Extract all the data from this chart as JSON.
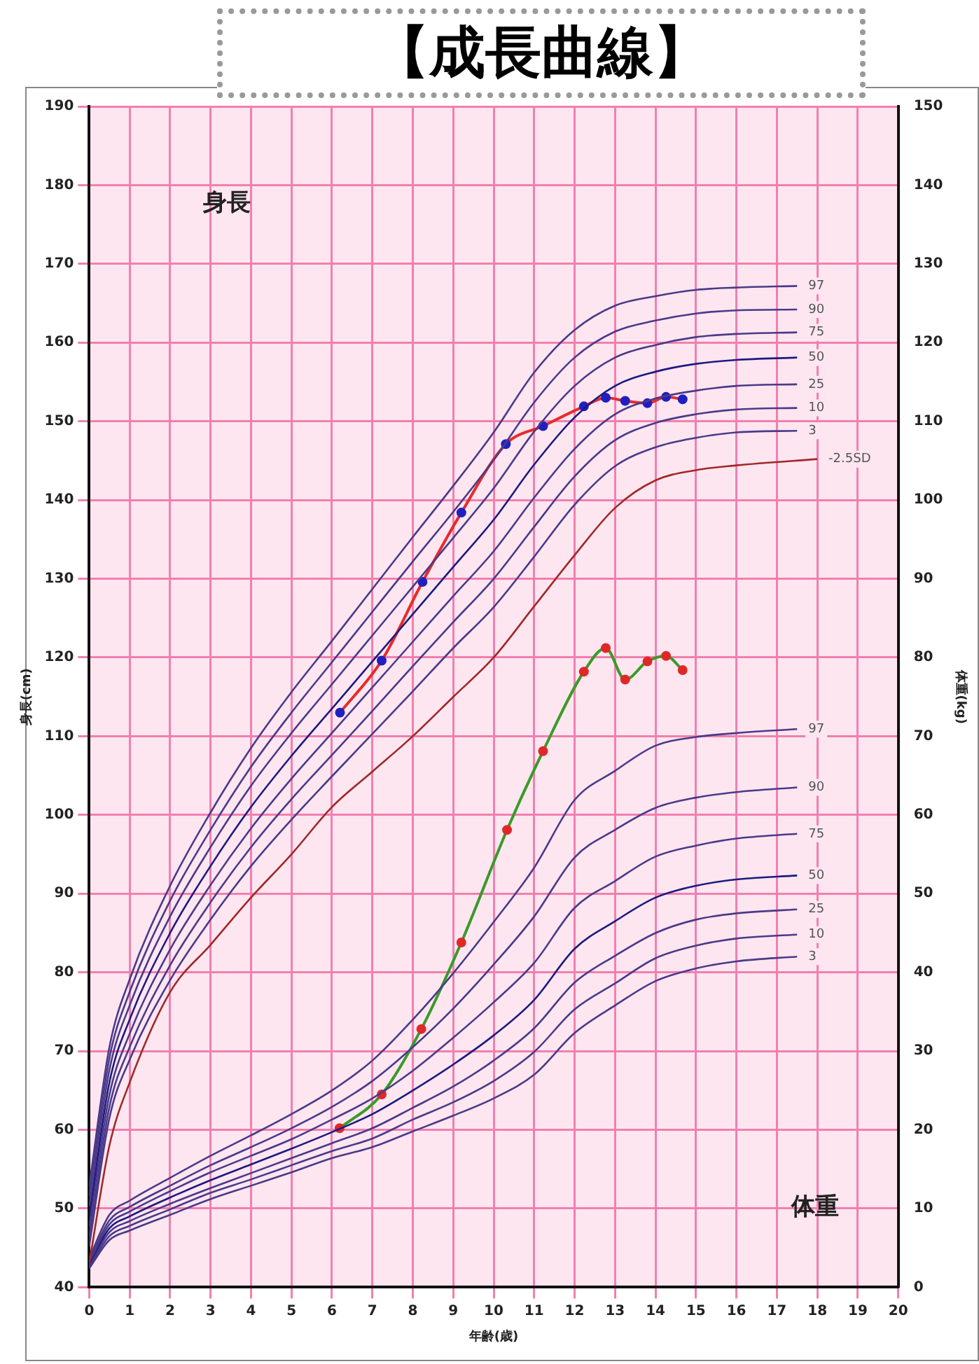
{
  "chart_data": {
    "type": "line",
    "title": "【成長曲線】",
    "xlabel": "年齢(歳)",
    "ylabel": "身長(cm)",
    "y2label": "体重(kg)",
    "annotations": [
      "身長",
      "体重"
    ],
    "xlim": [
      0,
      20
    ],
    "xticks": [
      0,
      1,
      2,
      3,
      4,
      5,
      6,
      7,
      8,
      9,
      10,
      11,
      12,
      13,
      14,
      15,
      16,
      17,
      18,
      19,
      20
    ],
    "ylim": [
      40,
      190
    ],
    "yticks": [
      40,
      50,
      60,
      70,
      80,
      90,
      100,
      110,
      120,
      130,
      140,
      150,
      160,
      170,
      180,
      190
    ],
    "y2lim": [
      0,
      150
    ],
    "y2ticks": [
      0,
      10,
      20,
      30,
      40,
      50,
      60,
      70,
      80,
      90,
      100,
      110,
      120,
      130,
      140,
      150
    ],
    "grid": true,
    "legend": false,
    "marker": "none",
    "line_style": "solid",
    "series": [
      {
        "name": "97",
        "color": "#4a3a8a",
        "x": [
          0,
          0.5,
          1,
          2,
          3,
          4,
          5,
          6,
          7,
          8,
          9,
          10,
          11,
          12,
          13,
          14,
          15,
          16,
          17.5
        ],
        "values": [
          52.8,
          70.5,
          79.1,
          91.0,
          100.3,
          108.5,
          115.6,
          122.1,
          128.7,
          135.3,
          141.8,
          148.6,
          156.2,
          161.6,
          164.7,
          165.9,
          166.7,
          167.0,
          167.2
        ]
      },
      {
        "name": "90",
        "color": "#4a3a8a",
        "x": [
          0,
          0.5,
          1,
          2,
          3,
          4,
          5,
          6,
          7,
          8,
          9,
          10,
          11,
          12,
          13,
          14,
          15,
          16,
          17.5
        ],
        "values": [
          51.6,
          69.1,
          77.5,
          89.1,
          98.1,
          106.1,
          113.0,
          119.4,
          125.8,
          132.2,
          138.5,
          145.1,
          152.4,
          158.1,
          161.4,
          162.8,
          163.7,
          164.1,
          164.2
        ]
      },
      {
        "name": "75",
        "color": "#4a3a8a",
        "x": [
          0,
          0.5,
          1,
          2,
          3,
          4,
          5,
          6,
          7,
          8,
          9,
          10,
          11,
          12,
          13,
          14,
          15,
          16,
          17.5
        ],
        "values": [
          50.3,
          67.6,
          75.8,
          87.1,
          95.9,
          103.7,
          110.4,
          116.6,
          122.8,
          129.0,
          135.2,
          141.5,
          148.7,
          154.5,
          158.1,
          159.7,
          160.7,
          161.1,
          161.3
        ]
      },
      {
        "name": "50",
        "color": "#1c1a80",
        "x": [
          0,
          0.5,
          1,
          2,
          3,
          4,
          5,
          6,
          7,
          8,
          9,
          10,
          11,
          12,
          13,
          14,
          15,
          16,
          17.5
        ],
        "values": [
          49,
          66,
          74,
          85,
          93.5,
          101,
          107.5,
          113.5,
          119.5,
          125.5,
          131.5,
          137.5,
          144.5,
          150.5,
          154.5,
          156.3,
          157.3,
          157.8,
          158.1
        ]
      },
      {
        "name": "25",
        "color": "#4a3a8a",
        "x": [
          0,
          0.5,
          1,
          2,
          3,
          4,
          5,
          6,
          7,
          8,
          9,
          10,
          11,
          12,
          13,
          14,
          15,
          16,
          17.5
        ],
        "values": [
          47.7,
          64.4,
          72.2,
          82.9,
          91.1,
          98.3,
          104.6,
          110.4,
          116.2,
          122.0,
          127.8,
          133.5,
          140.3,
          146.5,
          150.9,
          152.9,
          153.9,
          154.5,
          154.7
        ]
      },
      {
        "name": "10",
        "color": "#4a3a8a",
        "x": [
          0,
          0.5,
          1,
          2,
          3,
          4,
          5,
          6,
          7,
          8,
          9,
          10,
          11,
          12,
          13,
          14,
          15,
          16,
          17.5
        ],
        "values": [
          46.4,
          62.9,
          70.5,
          80.9,
          88.9,
          95.9,
          102.0,
          107.6,
          113.2,
          118.9,
          124.5,
          130.0,
          136.6,
          143.0,
          147.6,
          149.8,
          150.9,
          151.5,
          151.7
        ]
      },
      {
        "name": "3",
        "color": "#4a3a8a",
        "x": [
          0,
          0.5,
          1,
          2,
          3,
          4,
          5,
          6,
          7,
          8,
          9,
          10,
          11,
          12,
          13,
          14,
          15,
          16,
          17.5
        ],
        "values": [
          45.2,
          61.5,
          68.9,
          79.0,
          86.7,
          93.5,
          99.4,
          104.9,
          110.3,
          115.7,
          121.2,
          126.4,
          132.8,
          139.4,
          144.3,
          146.7,
          147.9,
          148.6,
          148.8
        ]
      },
      {
        "name": "-2.5SD",
        "color": "#a02828",
        "x": [
          0,
          0.5,
          1,
          2,
          3,
          4,
          5,
          6,
          7,
          8,
          9,
          10,
          11,
          12,
          13,
          14,
          15,
          16,
          18
        ],
        "values": [
          43,
          58,
          66,
          77.5,
          83.5,
          89.5,
          95,
          101,
          105.5,
          110,
          115,
          120,
          126.5,
          133,
          139,
          142.5,
          143.8,
          144.4,
          145.2
        ]
      },
      {
        "name": "97",
        "color": "#4a3a8a",
        "axis": "y2",
        "x": [
          0,
          0.5,
          1,
          2,
          3,
          4,
          5,
          6,
          7,
          8,
          9,
          10,
          11,
          12,
          13,
          14,
          15,
          16,
          17.5
        ],
        "values": [
          3.7,
          9.2,
          11.0,
          13.9,
          16.7,
          19.3,
          22.0,
          25.0,
          28.8,
          34.0,
          39.9,
          46.4,
          53.3,
          61.9,
          65.6,
          68.8,
          69.9,
          70.4,
          70.9
        ]
      },
      {
        "name": "90",
        "color": "#4a3a8a",
        "axis": "y2",
        "x": [
          0,
          0.5,
          1,
          2,
          3,
          4,
          5,
          6,
          7,
          8,
          9,
          10,
          11,
          12,
          13,
          14,
          15,
          16,
          17.5
        ],
        "values": [
          3.4,
          8.5,
          10.2,
          12.9,
          15.5,
          17.8,
          20.2,
          22.9,
          26.2,
          30.5,
          35.4,
          41.0,
          47.1,
          54.6,
          58.1,
          60.9,
          62.2,
          62.9,
          63.5
        ]
      },
      {
        "name": "75",
        "color": "#4a3a8a",
        "axis": "y2",
        "x": [
          0,
          0.5,
          1,
          2,
          3,
          4,
          5,
          6,
          7,
          8,
          9,
          10,
          11,
          12,
          13,
          14,
          15,
          16,
          17.5
        ],
        "values": [
          3.2,
          8.0,
          9.6,
          12.2,
          14.6,
          16.7,
          18.8,
          21.3,
          24.0,
          27.5,
          31.7,
          36.2,
          41.2,
          48.2,
          51.6,
          54.7,
          56.1,
          57.0,
          57.6
        ]
      },
      {
        "name": "50",
        "color": "#1c1a80",
        "axis": "y2",
        "x": [
          0,
          0.5,
          1,
          2,
          3,
          4,
          5,
          6,
          7,
          8,
          9,
          10,
          11,
          12,
          13,
          14,
          15,
          16,
          17.5
        ],
        "values": [
          3.0,
          7.5,
          9.0,
          11.4,
          13.6,
          15.6,
          17.6,
          19.7,
          22.0,
          25.0,
          28.3,
          32.0,
          36.5,
          43.0,
          46.5,
          49.5,
          51.0,
          51.8,
          52.3
        ]
      },
      {
        "name": "25",
        "color": "#4a3a8a",
        "axis": "y2",
        "x": [
          0,
          0.5,
          1,
          2,
          3,
          4,
          5,
          6,
          7,
          8,
          9,
          10,
          11,
          12,
          13,
          14,
          15,
          16,
          17.5
        ],
        "values": [
          2.8,
          7.0,
          8.4,
          10.6,
          12.6,
          14.5,
          16.4,
          18.3,
          20.2,
          22.8,
          25.5,
          28.8,
          32.9,
          38.7,
          42.1,
          45.0,
          46.7,
          47.5,
          48.0
        ]
      },
      {
        "name": "10",
        "color": "#4a3a8a",
        "axis": "y2",
        "x": [
          0,
          0.5,
          1,
          2,
          3,
          4,
          5,
          6,
          7,
          8,
          9,
          10,
          11,
          12,
          13,
          14,
          15,
          16,
          17.5
        ],
        "values": [
          2.6,
          6.5,
          7.8,
          9.9,
          12.0,
          13.7,
          15.5,
          17.3,
          18.9,
          21.3,
          23.5,
          26.2,
          29.9,
          35.3,
          38.6,
          41.8,
          43.4,
          44.3,
          44.8
        ]
      },
      {
        "name": "3",
        "color": "#4a3a8a",
        "axis": "y2",
        "x": [
          0,
          0.5,
          1,
          2,
          3,
          4,
          5,
          6,
          7,
          8,
          9,
          10,
          11,
          12,
          13,
          14,
          15,
          16,
          17.5
        ],
        "values": [
          2.4,
          6.0,
          7.2,
          9.2,
          11.2,
          12.9,
          14.6,
          16.4,
          17.8,
          19.8,
          21.8,
          24.0,
          27.0,
          32.3,
          35.8,
          38.9,
          40.5,
          41.4,
          42.0
        ]
      },
      {
        "color": "#e82a2a",
        "marker": "circle",
        "colors": [
          "#2020c0",
          "#2020c0",
          "#2020c0",
          "#2020c0",
          "#2020c0",
          "#2020c0",
          "#2020c0",
          "#2020c0",
          "#2020c0",
          "#2020c0",
          "#2020c0",
          "#2020c0"
        ],
        "x": [
          6.2,
          7.23,
          8.24,
          9.2,
          10.3,
          11.22,
          12.23,
          12.77,
          13.25,
          13.8,
          14.26,
          14.67
        ],
        "values": [
          113.0,
          119.6,
          129.6,
          138.4,
          147.1,
          149.4,
          151.9,
          153.0,
          152.6,
          152.3,
          153.1,
          152.8
        ]
      },
      {
        "color": "#3a9a2a",
        "axis": "y2",
        "marker": "circle",
        "colors": [
          "#e02828",
          "#e02828",
          "#e02828",
          "#e02828",
          "#e02828",
          "#e02828",
          "#e02828",
          "#e02828",
          "#e02828",
          "#e02828",
          "#e02828",
          "#e02828"
        ],
        "x": [
          6.19,
          7.23,
          8.21,
          9.2,
          10.33,
          11.22,
          12.23,
          12.77,
          13.25,
          13.8,
          14.26,
          14.67
        ],
        "values": [
          20.2,
          24.5,
          32.8,
          43.8,
          58.1,
          68.1,
          78.2,
          81.2,
          77.2,
          79.5,
          80.2,
          78.4
        ]
      }
    ]
  }
}
